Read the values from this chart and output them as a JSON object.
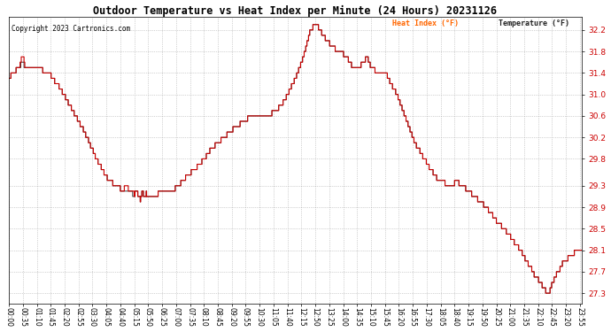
{
  "title": "Outdoor Temperature vs Heat Index per Minute (24 Hours) 20231126",
  "copyright": "Copyright 2023 Cartronics.com",
  "legend_heat": "Heat Index (°F)",
  "legend_temp": "Temperature (°F)",
  "legend_heat_color": "#ff6600",
  "legend_temp_color": "#cc0000",
  "line_heat_color": "#cc0000",
  "line_temp_color": "#222222",
  "background_color": "#ffffff",
  "grid_color": "#888888",
  "ylabel_right_color": "#cc0000",
  "title_color": "#000000",
  "copyright_color": "#000000",
  "yticks": [
    27.3,
    27.7,
    28.1,
    28.5,
    28.9,
    29.3,
    29.8,
    30.2,
    30.6,
    31.0,
    31.4,
    31.8,
    32.2
  ],
  "ylim": [
    27.1,
    32.45
  ],
  "xtick_interval": 35,
  "time_labels": [
    "00:00",
    "00:35",
    "01:10",
    "01:45",
    "02:20",
    "02:55",
    "03:30",
    "04:05",
    "04:40",
    "05:15",
    "05:50",
    "06:25",
    "07:00",
    "07:35",
    "08:10",
    "08:45",
    "09:20",
    "09:55",
    "10:30",
    "11:05",
    "11:40",
    "12:15",
    "12:50",
    "13:25",
    "14:00",
    "14:35",
    "15:10",
    "15:45",
    "16:20",
    "16:55",
    "17:30",
    "18:05",
    "18:40",
    "19:15",
    "19:50",
    "20:25",
    "21:00",
    "21:35",
    "22:10",
    "22:45",
    "23:20",
    "23:55"
  ],
  "keypoints": [
    [
      0,
      31.3
    ],
    [
      10,
      31.4
    ],
    [
      25,
      31.5
    ],
    [
      35,
      31.6
    ],
    [
      40,
      31.5
    ],
    [
      55,
      31.5
    ],
    [
      60,
      31.5
    ],
    [
      65,
      31.5
    ],
    [
      70,
      31.5
    ],
    [
      80,
      31.5
    ],
    [
      90,
      31.4
    ],
    [
      100,
      31.4
    ],
    [
      110,
      31.3
    ],
    [
      130,
      31.1
    ],
    [
      160,
      30.7
    ],
    [
      190,
      30.3
    ],
    [
      220,
      29.8
    ],
    [
      250,
      29.4
    ],
    [
      270,
      29.3
    ],
    [
      290,
      29.2
    ],
    [
      300,
      29.15
    ],
    [
      310,
      29.15
    ],
    [
      315,
      29.1
    ],
    [
      320,
      29.25
    ],
    [
      325,
      29.1
    ],
    [
      330,
      29.05
    ],
    [
      335,
      29.2
    ],
    [
      340,
      29.1
    ],
    [
      345,
      29.15
    ],
    [
      350,
      29.1
    ],
    [
      355,
      29.1
    ],
    [
      360,
      29.1
    ],
    [
      365,
      29.1
    ],
    [
      375,
      29.15
    ],
    [
      385,
      29.15
    ],
    [
      395,
      29.2
    ],
    [
      410,
      29.2
    ],
    [
      425,
      29.3
    ],
    [
      450,
      29.5
    ],
    [
      480,
      29.7
    ],
    [
      510,
      30.0
    ],
    [
      540,
      30.2
    ],
    [
      570,
      30.4
    ],
    [
      600,
      30.55
    ],
    [
      625,
      30.6
    ],
    [
      635,
      30.65
    ],
    [
      645,
      30.65
    ],
    [
      650,
      30.65
    ],
    [
      660,
      30.65
    ],
    [
      670,
      30.7
    ],
    [
      685,
      30.8
    ],
    [
      700,
      31.0
    ],
    [
      720,
      31.3
    ],
    [
      740,
      31.7
    ],
    [
      750,
      32.0
    ],
    [
      758,
      32.2
    ],
    [
      763,
      32.25
    ],
    [
      768,
      32.3
    ],
    [
      775,
      32.3
    ],
    [
      780,
      32.2
    ],
    [
      790,
      32.1
    ],
    [
      800,
      32.0
    ],
    [
      810,
      31.9
    ],
    [
      820,
      31.85
    ],
    [
      830,
      31.8
    ],
    [
      840,
      31.75
    ],
    [
      850,
      31.7
    ],
    [
      855,
      31.6
    ],
    [
      860,
      31.55
    ],
    [
      870,
      31.5
    ],
    [
      875,
      31.5
    ],
    [
      880,
      31.5
    ],
    [
      885,
      31.55
    ],
    [
      890,
      31.6
    ],
    [
      895,
      31.65
    ],
    [
      900,
      31.7
    ],
    [
      905,
      31.6
    ],
    [
      910,
      31.5
    ],
    [
      920,
      31.45
    ],
    [
      930,
      31.4
    ],
    [
      940,
      31.4
    ],
    [
      950,
      31.35
    ],
    [
      960,
      31.2
    ],
    [
      975,
      31.0
    ],
    [
      990,
      30.7
    ],
    [
      1005,
      30.4
    ],
    [
      1020,
      30.1
    ],
    [
      1040,
      29.85
    ],
    [
      1060,
      29.6
    ],
    [
      1080,
      29.4
    ],
    [
      1095,
      29.35
    ],
    [
      1110,
      29.3
    ],
    [
      1120,
      29.35
    ],
    [
      1130,
      29.35
    ],
    [
      1140,
      29.3
    ],
    [
      1155,
      29.2
    ],
    [
      1170,
      29.1
    ],
    [
      1185,
      29.0
    ],
    [
      1200,
      28.9
    ],
    [
      1215,
      28.75
    ],
    [
      1230,
      28.6
    ],
    [
      1245,
      28.5
    ],
    [
      1260,
      28.35
    ],
    [
      1275,
      28.2
    ],
    [
      1290,
      28.05
    ],
    [
      1300,
      27.9
    ],
    [
      1310,
      27.8
    ],
    [
      1320,
      27.65
    ],
    [
      1330,
      27.55
    ],
    [
      1340,
      27.45
    ],
    [
      1348,
      27.35
    ],
    [
      1355,
      27.3
    ],
    [
      1360,
      27.35
    ],
    [
      1365,
      27.5
    ],
    [
      1370,
      27.55
    ],
    [
      1375,
      27.65
    ],
    [
      1380,
      27.7
    ],
    [
      1385,
      27.75
    ],
    [
      1390,
      27.85
    ],
    [
      1395,
      27.9
    ],
    [
      1400,
      27.9
    ],
    [
      1405,
      27.95
    ],
    [
      1410,
      28.0
    ],
    [
      1420,
      28.05
    ],
    [
      1430,
      28.1
    ],
    [
      1439,
      28.1
    ]
  ]
}
